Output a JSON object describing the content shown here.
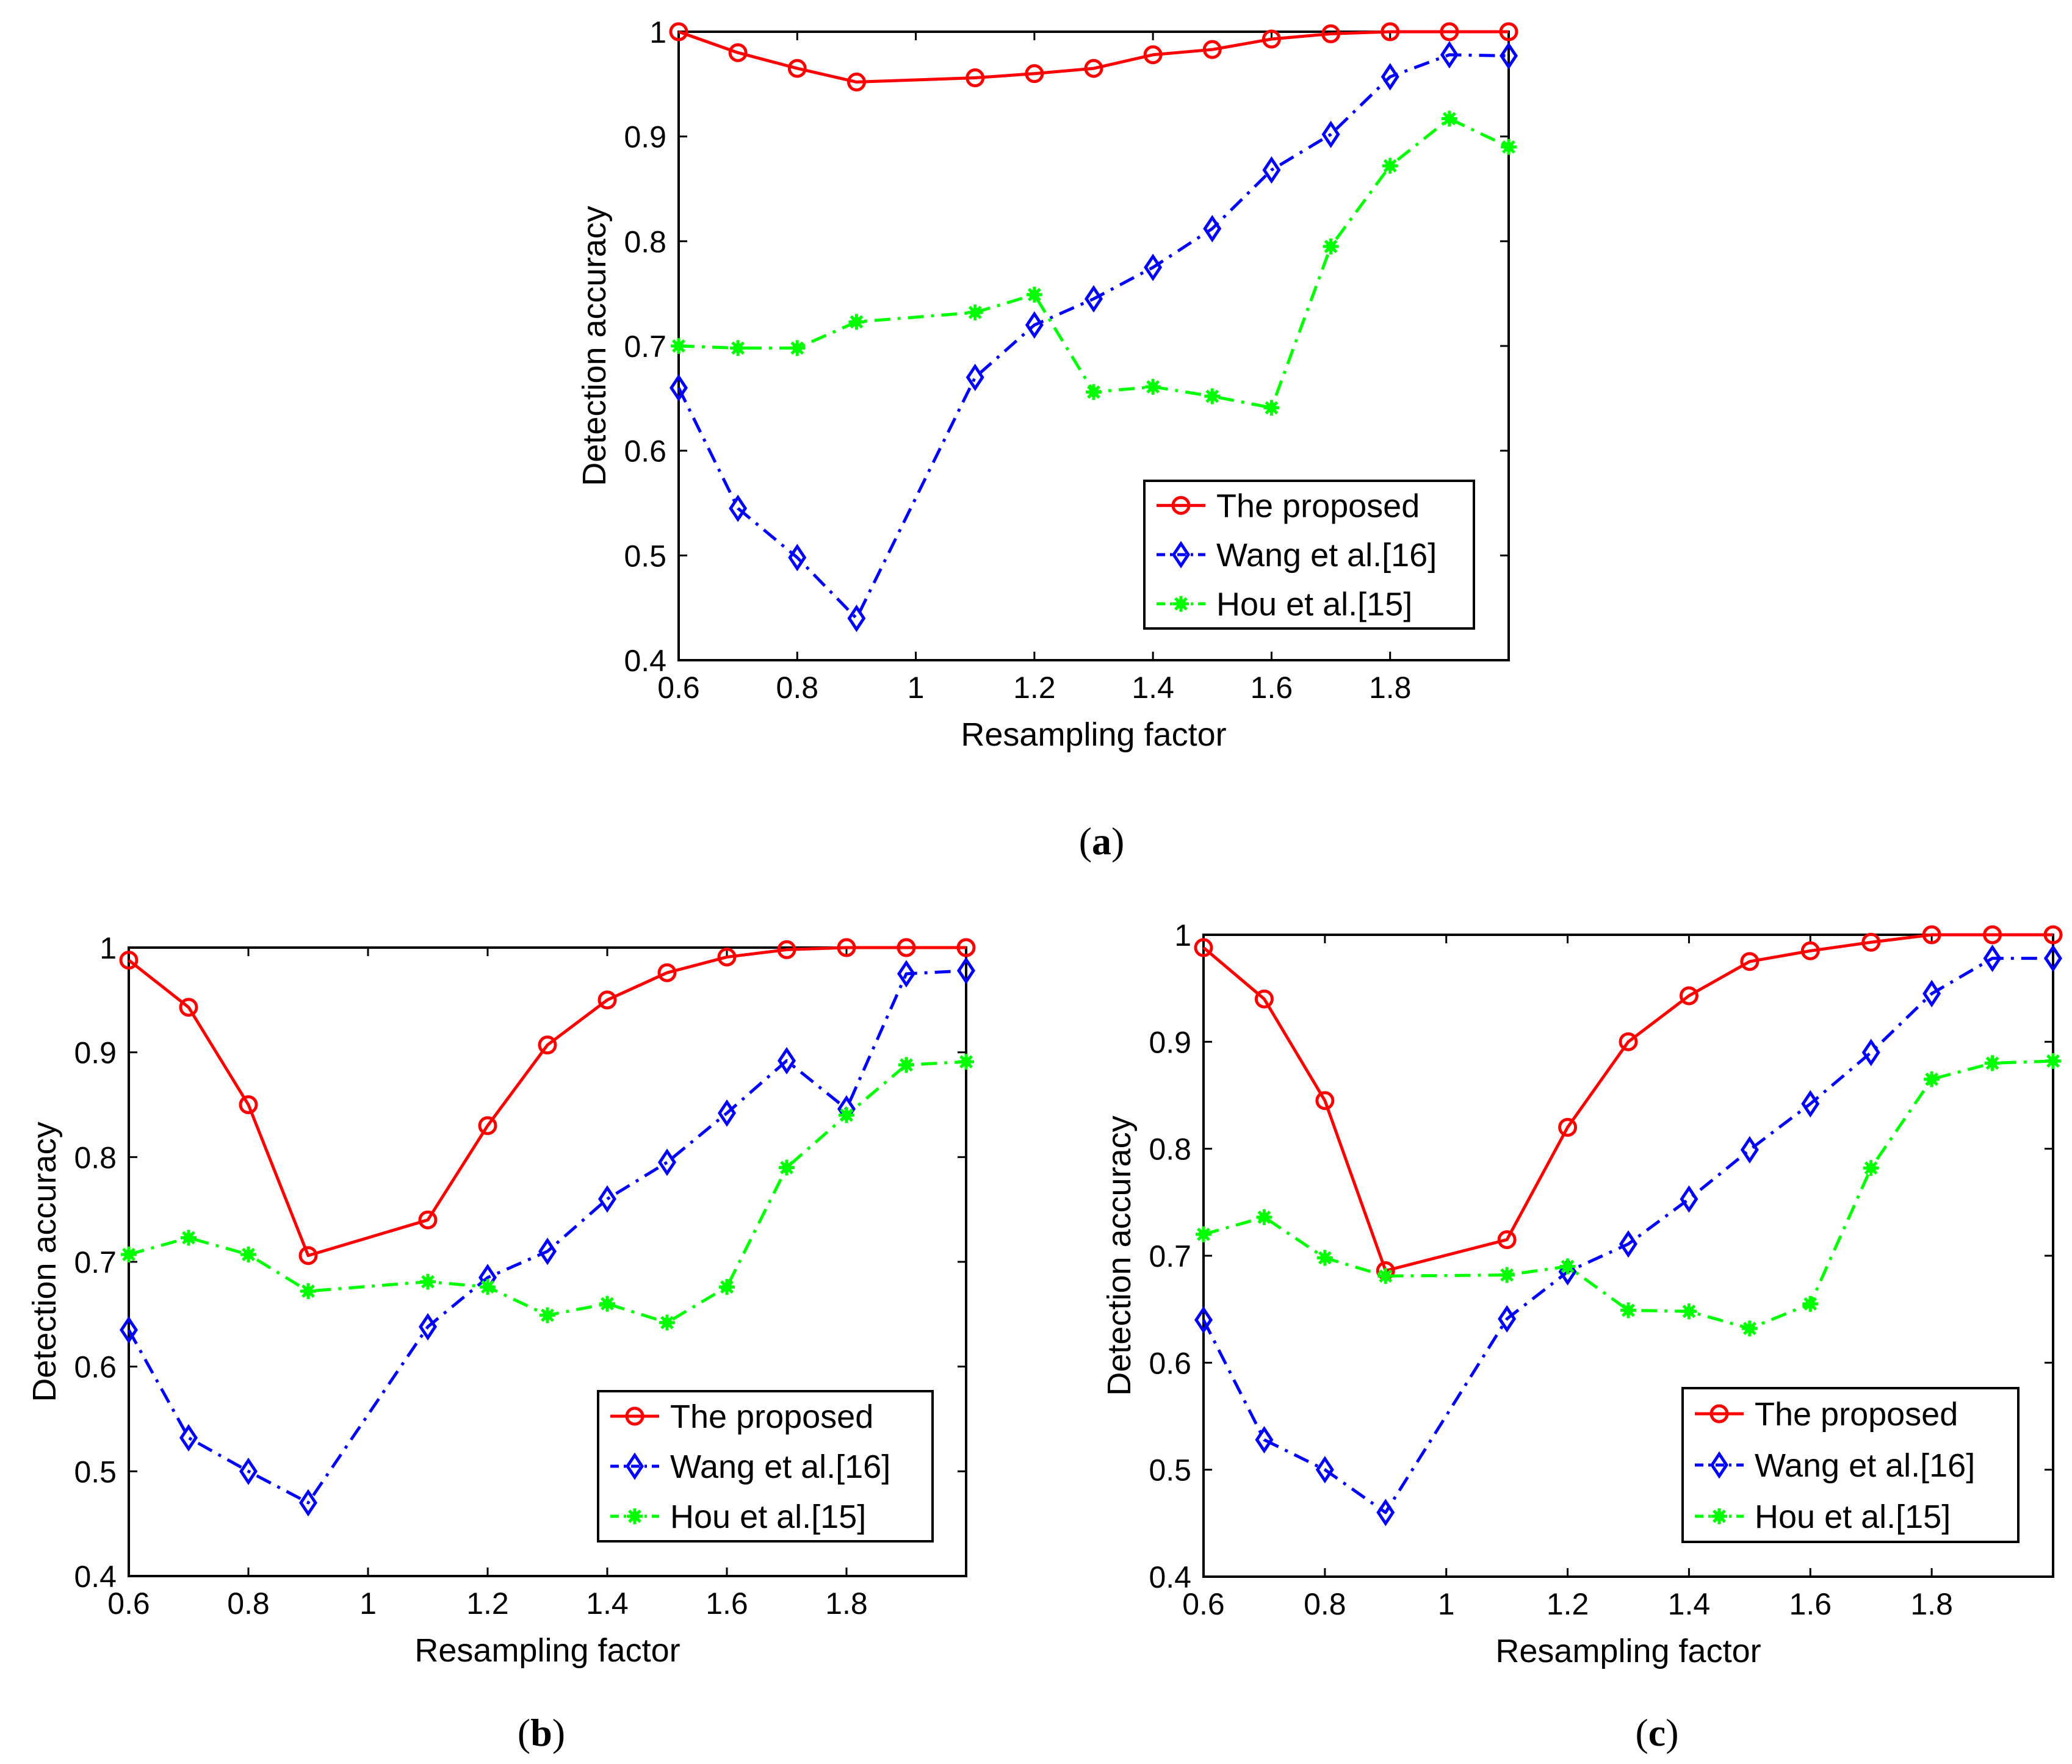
{
  "figure": {
    "panels": [
      "a",
      "b",
      "c"
    ]
  },
  "chart_data": [
    {
      "panel": "a",
      "type": "line",
      "xlabel": "Resampling factor",
      "ylabel": "Detection accuracy",
      "xlim": [
        0.6,
        2.0
      ],
      "ylim": [
        0.4,
        1.0
      ],
      "xticks": [
        0.6,
        0.8,
        1.0,
        1.2,
        1.4,
        1.6,
        1.8
      ],
      "xtick_labels": [
        "0.6",
        "0.8",
        "1",
        "1.2",
        "1.4",
        "1.6",
        "1.8"
      ],
      "yticks": [
        0.4,
        0.5,
        0.6,
        0.7,
        0.8,
        0.9,
        1.0
      ],
      "ytick_labels": [
        "0.4",
        "0.5",
        "0.6",
        "0.7",
        "0.8",
        "0.9",
        "1"
      ],
      "grid": false,
      "legend_position": "bottom-right",
      "x": [
        0.6,
        0.7,
        0.8,
        0.9,
        1.1,
        1.2,
        1.3,
        1.4,
        1.5,
        1.6,
        1.7,
        1.8,
        1.9,
        2.0
      ],
      "series": [
        {
          "name": "The proposed",
          "color": "#ff0000",
          "marker": "circle",
          "dash": "solid",
          "values": [
            1.0,
            0.98,
            0.965,
            0.952,
            0.956,
            0.96,
            0.965,
            0.978,
            0.983,
            0.993,
            0.998,
            1.0,
            1.0,
            1.0
          ]
        },
        {
          "name": "Wang et al.[16]",
          "color": "#0000ff",
          "marker": "diamond",
          "dash": "dashdot",
          "values": [
            0.66,
            0.545,
            0.498,
            0.44,
            0.67,
            0.72,
            0.745,
            0.775,
            0.812,
            0.868,
            0.902,
            0.957,
            0.978,
            0.977
          ]
        },
        {
          "name": "Hou et al.[15]",
          "color": "#00ff00",
          "marker": "star",
          "dash": "dashdot",
          "values": [
            0.7,
            0.698,
            0.698,
            0.723,
            0.732,
            0.749,
            0.656,
            0.661,
            0.652,
            0.641,
            0.795,
            0.872,
            0.917,
            0.89
          ]
        }
      ]
    },
    {
      "panel": "b",
      "type": "line",
      "xlabel": "Resampling factor",
      "ylabel": "Detection accuracy",
      "xlim": [
        0.6,
        2.0
      ],
      "ylim": [
        0.4,
        1.0
      ],
      "xticks": [
        0.6,
        0.8,
        1.0,
        1.2,
        1.4,
        1.6,
        1.8
      ],
      "xtick_labels": [
        "0.6",
        "0.8",
        "1",
        "1.2",
        "1.4",
        "1.6",
        "1.8"
      ],
      "yticks": [
        0.4,
        0.5,
        0.6,
        0.7,
        0.8,
        0.9,
        1.0
      ],
      "ytick_labels": [
        "0.4",
        "0.5",
        "0.6",
        "0.7",
        "0.8",
        "0.9",
        "1"
      ],
      "grid": false,
      "legend_position": "bottom-right",
      "x": [
        0.6,
        0.7,
        0.8,
        0.9,
        1.1,
        1.2,
        1.3,
        1.4,
        1.5,
        1.6,
        1.7,
        1.8,
        1.9,
        2.0
      ],
      "series": [
        {
          "name": "The proposed",
          "color": "#ff0000",
          "marker": "circle",
          "dash": "solid",
          "values": [
            0.988,
            0.943,
            0.85,
            0.706,
            0.74,
            0.83,
            0.907,
            0.95,
            0.976,
            0.991,
            0.998,
            1.0,
            1.0,
            1.0
          ]
        },
        {
          "name": "Wang et al.[16]",
          "color": "#0000ff",
          "marker": "diamond",
          "dash": "dashdot",
          "values": [
            0.635,
            0.532,
            0.5,
            0.47,
            0.638,
            0.685,
            0.71,
            0.76,
            0.795,
            0.842,
            0.892,
            0.846,
            0.975,
            0.978
          ]
        },
        {
          "name": "Hou et al.[15]",
          "color": "#00ff00",
          "marker": "star",
          "dash": "dashdot",
          "values": [
            0.707,
            0.723,
            0.707,
            0.672,
            0.681,
            0.676,
            0.649,
            0.66,
            0.642,
            0.676,
            0.79,
            0.84,
            0.888,
            0.891
          ]
        }
      ]
    },
    {
      "panel": "c",
      "type": "line",
      "xlabel": "Resampling factor",
      "ylabel": "Detection accuracy",
      "xlim": [
        0.6,
        2.0
      ],
      "ylim": [
        0.4,
        1.0
      ],
      "xticks": [
        0.6,
        0.8,
        1.0,
        1.2,
        1.4,
        1.6,
        1.8
      ],
      "xtick_labels": [
        "0.6",
        "0.8",
        "1",
        "1.2",
        "1.4",
        "1.6",
        "1.8"
      ],
      "yticks": [
        0.4,
        0.5,
        0.6,
        0.7,
        0.8,
        0.9,
        1.0
      ],
      "ytick_labels": [
        "0.4",
        "0.5",
        "0.6",
        "0.7",
        "0.8",
        "0.9",
        "1"
      ],
      "grid": false,
      "legend_position": "bottom-right",
      "x": [
        0.6,
        0.7,
        0.8,
        0.9,
        1.1,
        1.2,
        1.3,
        1.4,
        1.5,
        1.6,
        1.7,
        1.8,
        1.9,
        2.0
      ],
      "series": [
        {
          "name": "The proposed",
          "color": "#ff0000",
          "marker": "circle",
          "dash": "solid",
          "values": [
            0.988,
            0.94,
            0.845,
            0.686,
            0.715,
            0.82,
            0.9,
            0.943,
            0.975,
            0.985,
            0.993,
            1.0,
            1.0,
            1.0
          ]
        },
        {
          "name": "Wang et al.[16]",
          "color": "#0000ff",
          "marker": "diamond",
          "dash": "dashdot",
          "values": [
            0.64,
            0.528,
            0.5,
            0.46,
            0.641,
            0.685,
            0.711,
            0.753,
            0.799,
            0.842,
            0.89,
            0.945,
            0.978,
            0.978
          ]
        },
        {
          "name": "Hou et al.[15]",
          "color": "#00ff00",
          "marker": "star",
          "dash": "dashdot",
          "values": [
            0.72,
            0.736,
            0.698,
            0.681,
            0.682,
            0.69,
            0.649,
            0.648,
            0.632,
            0.655,
            0.782,
            0.865,
            0.88,
            0.882
          ]
        }
      ]
    }
  ]
}
